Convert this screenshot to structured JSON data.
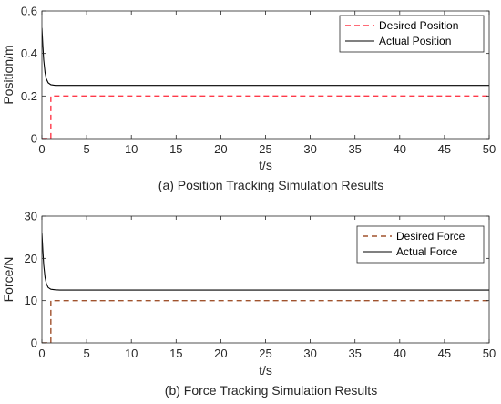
{
  "chart_data": [
    {
      "type": "line",
      "caption": "(a) Position Tracking Simulation Results",
      "xlabel": "t/s",
      "ylabel": "Position/m",
      "xlim": [
        0,
        50
      ],
      "ylim": [
        0,
        0.6
      ],
      "xticks": [
        0,
        5,
        10,
        15,
        20,
        25,
        30,
        35,
        40,
        45,
        50
      ],
      "yticks": [
        0,
        0.2,
        0.4,
        0.6
      ],
      "ytick_labels": [
        "0",
        "0.2",
        "0.4",
        "0.6"
      ],
      "legend_position": "top-right",
      "series": [
        {
          "name": "Desired Position",
          "style": "dashed",
          "color": "#ff3a4a",
          "x": [
            0,
            1,
            1,
            50
          ],
          "y": [
            0,
            0,
            0.2,
            0.2
          ]
        },
        {
          "name": "Actual Position",
          "style": "solid",
          "color": "#000000",
          "x": [
            0,
            0.1,
            0.2,
            0.35,
            0.5,
            0.7,
            1.0,
            1.5,
            2,
            50
          ],
          "y": [
            0.52,
            0.44,
            0.37,
            0.31,
            0.28,
            0.262,
            0.253,
            0.25,
            0.25,
            0.25
          ]
        }
      ]
    },
    {
      "type": "line",
      "caption": "(b) Force Tracking Simulation Results",
      "xlabel": "t/s",
      "ylabel": "Force/N",
      "xlim": [
        0,
        50
      ],
      "ylim": [
        0,
        30
      ],
      "xticks": [
        0,
        5,
        10,
        15,
        20,
        25,
        30,
        35,
        40,
        45,
        50
      ],
      "yticks": [
        0,
        10,
        20,
        30
      ],
      "ytick_labels": [
        "0",
        "10",
        "20",
        "30"
      ],
      "legend_position": "top-right",
      "series": [
        {
          "name": "Desired Force",
          "style": "dashed",
          "color": "#a0522d",
          "x": [
            0,
            1,
            1,
            50
          ],
          "y": [
            0,
            0,
            10,
            10
          ]
        },
        {
          "name": "Actual Force",
          "style": "solid",
          "color": "#000000",
          "x": [
            0,
            0.1,
            0.2,
            0.35,
            0.5,
            0.7,
            1.0,
            1.5,
            2,
            50
          ],
          "y": [
            26,
            22,
            18.5,
            15.5,
            14,
            13.1,
            12.7,
            12.55,
            12.5,
            12.5
          ]
        }
      ]
    }
  ]
}
